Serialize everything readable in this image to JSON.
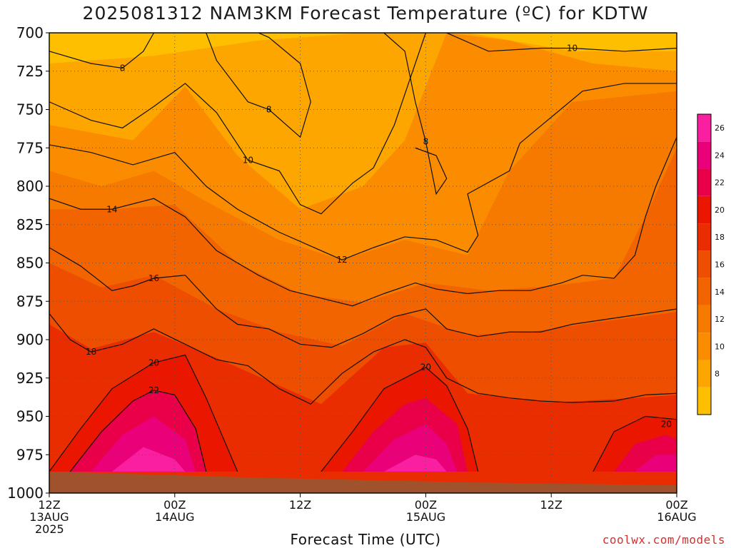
{
  "chart_data": {
    "type": "heatmap",
    "title": "2025081312 NAM3KM Forecast Temperature (ºC) for KDTW",
    "xlabel": "Forecast Time (UTC)",
    "ylabel": "",
    "credit": "coolwx.com/models",
    "y_axis": {
      "ticks": [
        700,
        725,
        750,
        775,
        800,
        825,
        850,
        875,
        900,
        925,
        950,
        975,
        1000
      ],
      "range": [
        700,
        1000
      ],
      "inverted": true,
      "unit": "hPa"
    },
    "x_axis": {
      "range_hours": [
        0,
        60
      ],
      "ticks": [
        {
          "hour": 0,
          "line1": "12Z",
          "line2": "13AUG",
          "line3": "2025"
        },
        {
          "hour": 12,
          "line1": "00Z",
          "line2": "14AUG",
          "line3": ""
        },
        {
          "hour": 24,
          "line1": "12Z",
          "line2": "",
          "line3": ""
        },
        {
          "hour": 36,
          "line1": "00Z",
          "line2": "15AUG",
          "line3": ""
        },
        {
          "hour": 48,
          "line1": "12Z",
          "line2": "",
          "line3": ""
        },
        {
          "hour": 60,
          "line1": "00Z",
          "line2": "16AUG",
          "line3": ""
        }
      ]
    },
    "colorbar": {
      "levels": [
        6,
        8,
        10,
        12,
        14,
        16,
        18,
        20,
        22,
        24,
        26,
        28
      ],
      "labels": [
        8,
        10,
        12,
        14,
        16,
        18,
        20,
        22,
        24,
        26
      ],
      "colors": [
        "#fdbf00",
        "#fda600",
        "#fb8c00",
        "#f77a00",
        "#f26400",
        "#ee4e00",
        "#ea2d00",
        "#ea1600",
        "#ea0049",
        "#ea0078",
        "#fa1ea0"
      ]
    },
    "ground_color": "#a0522d",
    "isotherms": [
      {
        "temp": 8,
        "label_at": [
          7,
          723
        ],
        "points": [
          [
            0,
            712
          ],
          [
            4,
            720
          ],
          [
            7,
            723
          ],
          [
            9,
            712
          ],
          [
            10,
            700
          ]
        ]
      },
      {
        "temp": 8,
        "label_at": [
          21,
          750
        ],
        "points": [
          [
            15,
            700
          ],
          [
            16,
            718
          ],
          [
            19,
            745
          ],
          [
            21,
            750
          ],
          [
            24,
            768
          ],
          [
            25,
            745
          ],
          [
            24,
            720
          ],
          [
            21,
            703
          ],
          [
            20,
            700
          ]
        ]
      },
      {
        "temp": 8,
        "label_at": [
          36,
          771
        ],
        "points": [
          [
            32,
            700
          ],
          [
            34,
            712
          ],
          [
            35,
            745
          ],
          [
            36,
            771
          ],
          [
            37,
            805
          ],
          [
            38,
            795
          ],
          [
            37,
            780
          ],
          [
            35,
            775
          ]
        ]
      },
      {
        "temp": 10,
        "label_at": [
          19,
          783
        ],
        "points": [
          [
            0,
            745
          ],
          [
            4,
            757
          ],
          [
            7,
            762
          ],
          [
            10,
            748
          ],
          [
            13,
            733
          ],
          [
            16,
            752
          ],
          [
            19,
            783
          ],
          [
            22,
            790
          ],
          [
            24,
            812
          ],
          [
            26,
            818
          ],
          [
            29,
            798
          ],
          [
            31,
            788
          ],
          [
            33,
            760
          ],
          [
            36,
            700
          ]
        ]
      },
      {
        "temp": 10,
        "label_at": [
          50,
          710
        ],
        "points": [
          [
            38,
            700
          ],
          [
            42,
            712
          ],
          [
            47,
            710
          ],
          [
            50,
            710
          ],
          [
            55,
            712
          ],
          [
            60,
            710
          ]
        ]
      },
      {
        "temp": 12,
        "label_at": [
          28,
          848
        ],
        "points": [
          [
            0,
            773
          ],
          [
            4,
            778
          ],
          [
            8,
            786
          ],
          [
            12,
            778
          ],
          [
            15,
            800
          ],
          [
            18,
            815
          ],
          [
            22,
            830
          ],
          [
            26,
            842
          ],
          [
            28,
            848
          ],
          [
            31,
            840
          ],
          [
            34,
            833
          ],
          [
            37,
            835
          ],
          [
            40,
            843
          ],
          [
            41,
            832
          ],
          [
            40,
            805
          ],
          [
            44,
            790
          ],
          [
            45,
            772
          ],
          [
            48,
            755
          ],
          [
            51,
            738
          ],
          [
            55,
            733
          ],
          [
            60,
            733
          ]
        ]
      },
      {
        "temp": 14,
        "label_at": [
          6,
          815
        ],
        "points": [
          [
            0,
            808
          ],
          [
            3,
            815
          ],
          [
            6,
            815
          ],
          [
            10,
            808
          ],
          [
            13,
            820
          ],
          [
            16,
            842
          ],
          [
            20,
            858
          ],
          [
            23,
            868
          ],
          [
            26,
            873
          ],
          [
            29,
            878
          ],
          [
            32,
            870
          ],
          [
            35,
            863
          ],
          [
            37,
            867
          ],
          [
            40,
            870
          ],
          [
            43,
            868
          ],
          [
            46,
            868
          ],
          [
            49,
            863
          ],
          [
            51,
            858
          ],
          [
            54,
            860
          ],
          [
            56,
            845
          ],
          [
            57,
            820
          ],
          [
            58,
            800
          ],
          [
            60,
            768
          ]
        ]
      },
      {
        "temp": 16,
        "label_at": [
          10,
          860
        ],
        "points": [
          [
            0,
            840
          ],
          [
            3,
            852
          ],
          [
            6,
            868
          ],
          [
            8,
            865
          ],
          [
            10,
            860
          ],
          [
            13,
            858
          ],
          [
            16,
            880
          ],
          [
            18,
            890
          ],
          [
            21,
            893
          ],
          [
            24,
            903
          ],
          [
            27,
            905
          ],
          [
            30,
            896
          ],
          [
            33,
            885
          ],
          [
            36,
            880
          ],
          [
            38,
            893
          ],
          [
            41,
            898
          ],
          [
            44,
            895
          ],
          [
            47,
            895
          ],
          [
            50,
            890
          ],
          [
            54,
            886
          ],
          [
            58,
            882
          ],
          [
            60,
            880
          ]
        ]
      },
      {
        "temp": 18,
        "label_at": [
          4,
          908
        ],
        "points": [
          [
            0,
            883
          ],
          [
            2,
            900
          ],
          [
            4,
            908
          ],
          [
            7,
            903
          ],
          [
            10,
            893
          ],
          [
            13,
            903
          ],
          [
            16,
            913
          ],
          [
            19,
            917
          ],
          [
            22,
            932
          ],
          [
            25,
            942
          ],
          [
            28,
            922
          ],
          [
            31,
            908
          ],
          [
            34,
            900
          ],
          [
            36,
            905
          ],
          [
            38,
            925
          ],
          [
            41,
            935
          ],
          [
            44,
            938
          ],
          [
            47,
            940
          ],
          [
            50,
            941
          ],
          [
            54,
            940
          ],
          [
            57,
            936
          ],
          [
            60,
            935
          ]
        ]
      },
      {
        "temp": 20,
        "label_at": [
          10,
          915
        ],
        "points": [
          [
            0,
            986
          ],
          [
            3,
            958
          ],
          [
            6,
            932
          ],
          [
            10,
            915
          ],
          [
            13,
            910
          ],
          [
            15,
            938
          ],
          [
            17,
            970
          ],
          [
            18,
            986
          ]
        ]
      },
      {
        "temp": 22,
        "label_at": [
          10,
          933
        ],
        "points": [
          [
            2,
            986
          ],
          [
            5,
            960
          ],
          [
            8,
            940
          ],
          [
            10,
            933
          ],
          [
            12,
            936
          ],
          [
            14,
            958
          ],
          [
            15,
            986
          ]
        ]
      },
      {
        "temp": 20,
        "label_at": [
          36,
          918
        ],
        "points": [
          [
            26,
            986
          ],
          [
            29,
            960
          ],
          [
            32,
            932
          ],
          [
            36,
            918
          ],
          [
            38,
            930
          ],
          [
            40,
            958
          ],
          [
            41,
            986
          ]
        ]
      },
      {
        "temp": 20,
        "label_at": [
          59,
          955
        ],
        "points": [
          [
            52,
            986
          ],
          [
            54,
            960
          ],
          [
            57,
            950
          ],
          [
            60,
            952
          ]
        ]
      }
    ]
  }
}
